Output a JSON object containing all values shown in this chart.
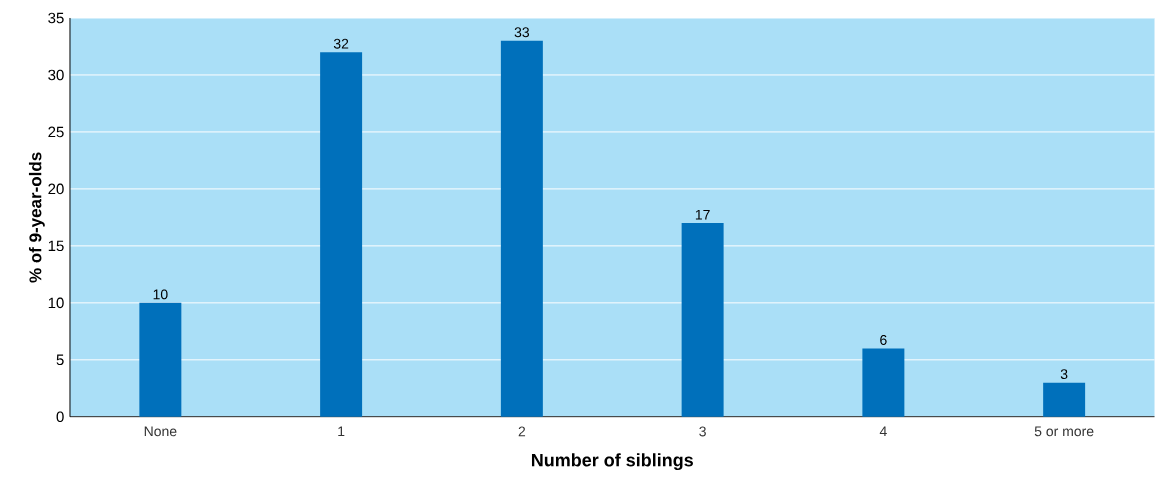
{
  "chart_data": {
    "type": "bar",
    "xlabel": "Number of siblings",
    "ylabel": "% of 9-year-olds",
    "categories": [
      "None",
      "1",
      "2",
      "3",
      "4",
      "5 or more"
    ],
    "values": [
      10,
      32,
      33,
      17,
      6,
      3
    ],
    "color": "#0070bb",
    "ylim": [
      0,
      35
    ],
    "yticks": [
      0,
      5,
      10,
      15,
      20,
      25,
      30,
      35
    ],
    "grid": "y",
    "data_labels": true
  }
}
